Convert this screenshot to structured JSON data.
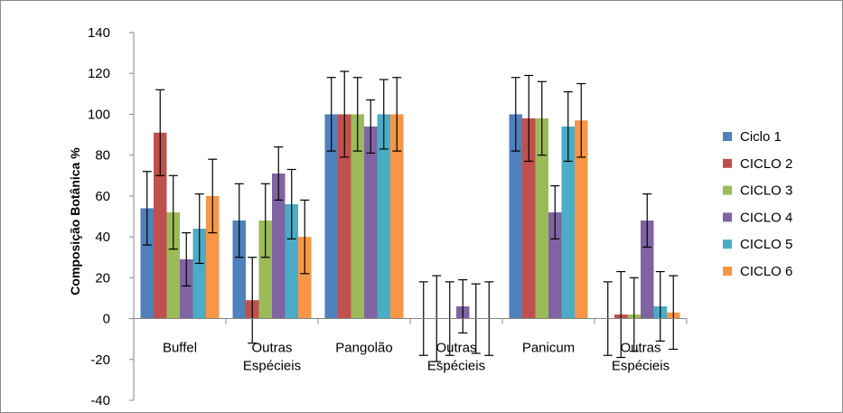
{
  "chart_data": {
    "type": "bar",
    "ylabel": "Composição Botânica %",
    "ylim": [
      -40,
      140
    ],
    "yticks": [
      -40,
      -20,
      0,
      20,
      40,
      60,
      80,
      100,
      120,
      140
    ],
    "ytick_labels": [
      "-40",
      "-20",
      "0",
      "20",
      "40",
      "60",
      "80",
      "100",
      "120",
      "140"
    ],
    "grid": false,
    "legend_position": "right",
    "categories": [
      [
        "Buffel"
      ],
      [
        "Outras",
        "Espécieis"
      ],
      [
        "Pangolão"
      ],
      [
        "Outras",
        "Espécieis"
      ],
      [
        "Panicum"
      ],
      [
        "Outras",
        "Espécieis"
      ]
    ],
    "series": [
      {
        "name": "Ciclo 1",
        "color": "#4F81BD",
        "values": [
          54,
          48,
          100,
          0,
          100,
          0
        ],
        "errors": [
          18,
          18,
          18,
          18,
          18,
          18
        ]
      },
      {
        "name": "CICLO 2",
        "color": "#C0504D",
        "values": [
          91,
          9,
          100,
          0,
          98,
          2
        ],
        "errors": [
          21,
          21,
          21,
          21,
          21,
          21
        ]
      },
      {
        "name": "CICLO 3",
        "color": "#9BBB59",
        "values": [
          52,
          48,
          100,
          0,
          98,
          2
        ],
        "errors": [
          18,
          18,
          18,
          18,
          18,
          18
        ]
      },
      {
        "name": "CICLO 4",
        "color": "#8064A2",
        "values": [
          29,
          71,
          94,
          6,
          52,
          48
        ],
        "errors": [
          13,
          13,
          13,
          13,
          13,
          13
        ]
      },
      {
        "name": "CICLO 5",
        "color": "#4BACC6",
        "values": [
          44,
          56,
          100,
          0,
          94,
          6
        ],
        "errors": [
          17,
          17,
          17,
          17,
          17,
          17
        ]
      },
      {
        "name": "CICLO 6",
        "color": "#F79646",
        "values": [
          60,
          40,
          100,
          0,
          97,
          3
        ],
        "errors": [
          18,
          18,
          18,
          18,
          18,
          18
        ]
      }
    ]
  }
}
